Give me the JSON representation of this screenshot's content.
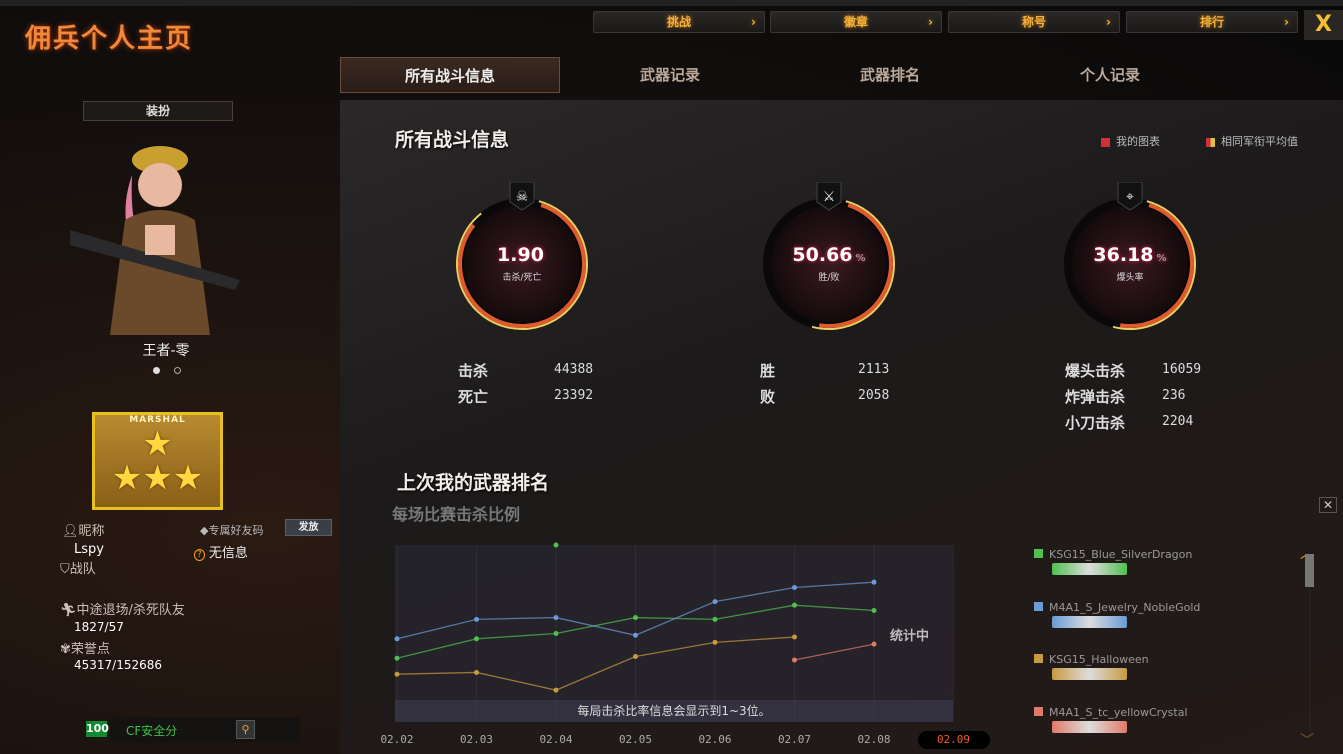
{
  "window": {
    "title": "佣兵个人主页",
    "close_label": "X"
  },
  "top_buttons": [
    {
      "label": "挑战"
    },
    {
      "label": "徽章"
    },
    {
      "label": "称号"
    },
    {
      "label": "排行"
    }
  ],
  "tabs": [
    {
      "label": "所有战斗信息",
      "active": true
    },
    {
      "label": "武器记录"
    },
    {
      "label": "武器排名"
    },
    {
      "label": "个人记录"
    }
  ],
  "profile": {
    "outfit_button": "装扮",
    "character_name": "王者-零",
    "rank_badge": "MARSHAL",
    "nickname_label": "昵称",
    "nickname": "Lspy",
    "friend_code_label": "专属好友码",
    "friend_code_button": "发放",
    "friend_code_value": "无信息",
    "clan_label": "战队",
    "quit_label": "中途退场/杀死队友",
    "quit_value": "1827/57",
    "honor_label": "荣誉点",
    "honor_value": "45317/152686",
    "security_score": "100",
    "security_label": "CF安全分"
  },
  "battle": {
    "title": "所有战斗信息",
    "legend": [
      {
        "label": "我的图表",
        "color": "#d0303a"
      },
      {
        "label": "相同军衔平均值",
        "color": "#e0c040"
      }
    ],
    "gauges": [
      {
        "value": "1.90",
        "unit": "",
        "label": "击杀/死亡",
        "icon": "skull-crossbones-icon"
      },
      {
        "value": "50.66",
        "unit": "%",
        "label": "胜/败",
        "icon": "crossed-guns-icon"
      },
      {
        "value": "36.18",
        "unit": "%",
        "label": "爆头率",
        "icon": "crosshair-rifle-icon"
      }
    ],
    "stats": [
      [
        {
          "label": "击杀",
          "value": "44388"
        },
        {
          "label": "死亡",
          "value": "23392"
        }
      ],
      [
        {
          "label": "胜",
          "value": "2113"
        },
        {
          "label": "败",
          "value": "2058"
        }
      ],
      [
        {
          "label": "爆头击杀",
          "value": "16059"
        },
        {
          "label": "炸弹击杀",
          "value": "236"
        },
        {
          "label": "小刀击杀",
          "value": "2204"
        }
      ]
    ]
  },
  "weapon_rank": {
    "title": "上次我的武器排名",
    "subtitle": "每场比赛击杀比例",
    "status": "统计中",
    "note": "每局击杀比率信息会显示到1~3位。"
  },
  "chart_data": {
    "type": "line",
    "title": "每场比赛击杀比例",
    "grid": false,
    "legend": "right",
    "categories": [
      "02.02",
      "02.03",
      "02.04",
      "02.05",
      "02.06",
      "02.07",
      "02.08",
      "02.09"
    ],
    "selected_category": "02.09",
    "series": [
      {
        "name": "KSG15_Blue_SilverDragon",
        "color": "#50c050",
        "values": [
          36,
          47,
          50,
          59,
          58,
          66,
          63,
          null
        ],
        "extra_point": {
          "category": "02.04",
          "value": 100
        }
      },
      {
        "name": "M4A1_S_Jewelry_NobleGold",
        "color": "#6a9ad8",
        "values": [
          47,
          58,
          59,
          49,
          68,
          76,
          79,
          null
        ]
      },
      {
        "name": "KSG15_Halloween",
        "color": "#c89a40",
        "values": [
          27,
          28,
          18,
          37,
          45,
          48,
          null,
          null
        ]
      },
      {
        "name": "M4A1_S_tc_yellowCrystal",
        "color": "#e07a68",
        "values": [
          null,
          null,
          null,
          null,
          null,
          35,
          44,
          null
        ]
      }
    ]
  }
}
